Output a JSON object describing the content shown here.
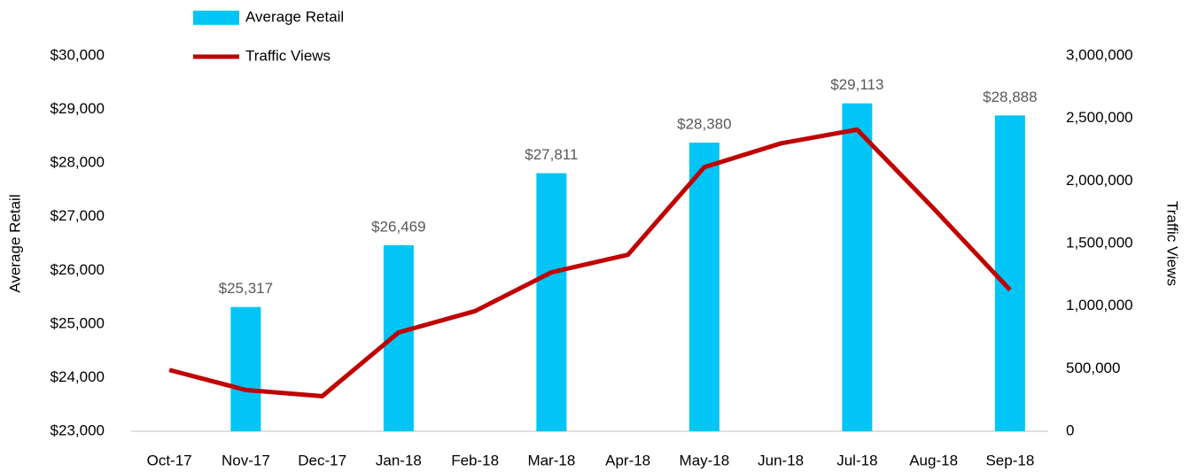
{
  "chart_data": {
    "type": "combo",
    "categories": [
      "Oct-17",
      "Nov-17",
      "Dec-17",
      "Jan-18",
      "Feb-18",
      "Mar-18",
      "Apr-18",
      "May-18",
      "Jun-18",
      "Jul-18",
      "Aug-18",
      "Sep-18"
    ],
    "series": [
      {
        "name": "Average Retail",
        "type": "bar",
        "color": "#00c5f5",
        "values": [
          null,
          25317,
          null,
          26469,
          null,
          27811,
          null,
          28380,
          null,
          29113,
          null,
          28888
        ],
        "value_labels": [
          null,
          "$25,317",
          null,
          "$26,469",
          null,
          "$27,811",
          null,
          "$28,380",
          null,
          "$29,113",
          null,
          "$28,888"
        ]
      },
      {
        "name": "Traffic Views",
        "type": "line",
        "axis": "y2",
        "color": "#c00000",
        "values": [
          490000,
          330000,
          280000,
          790000,
          960000,
          1270000,
          1410000,
          2110000,
          2300000,
          2410000,
          1780000,
          1130000
        ]
      }
    ],
    "ylabel": "Average Retail",
    "y2label": "Traffic Views",
    "ylim": [
      23000,
      30000
    ],
    "yticks": [
      {
        "value": 23000,
        "label": "$23,000"
      },
      {
        "value": 24000,
        "label": "$24,000"
      },
      {
        "value": 25000,
        "label": "$25,000"
      },
      {
        "value": 26000,
        "label": "$26,000"
      },
      {
        "value": 27000,
        "label": "$27,000"
      },
      {
        "value": 28000,
        "label": "$28,000"
      },
      {
        "value": 29000,
        "label": "$29,000"
      },
      {
        "value": 30000,
        "label": "$30,000"
      }
    ],
    "y2lim": [
      0,
      3000000
    ],
    "y2ticks": [
      0,
      {
        "value": 500000,
        "label": "500,000"
      },
      {
        "value": 1000000,
        "label": "1,000,000"
      },
      {
        "value": 1500000,
        "label": "1,500,000"
      },
      {
        "value": 2000000,
        "label": "2,000,000"
      },
      {
        "value": 2500000,
        "label": "2,500,000"
      },
      {
        "value": 3000000,
        "label": "3,000,000"
      }
    ],
    "legend": "top-left"
  }
}
